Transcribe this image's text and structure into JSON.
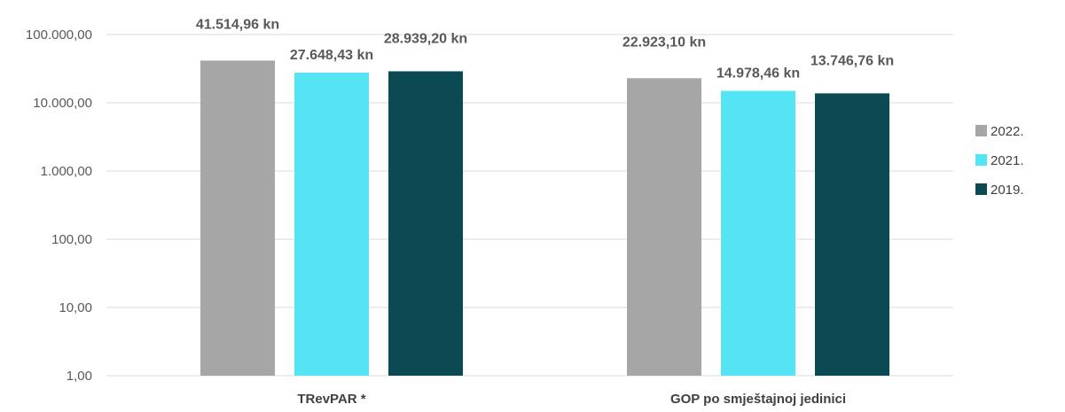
{
  "chart_data": {
    "type": "bar",
    "y_scale": "log",
    "ylim": [
      1,
      100000
    ],
    "y_ticks": [
      "1,00",
      "10,00",
      "100,00",
      "1.000,00",
      "10.000,00",
      "100.000,00"
    ],
    "categories": [
      "TRevPAR *",
      "GOP po smještajnoj jedinici"
    ],
    "series": [
      {
        "name": "2022.",
        "color": "#a6a6a6",
        "values": [
          41514.96,
          22923.1
        ],
        "labels": [
          "41.514,96 kn",
          "22.923,10 kn"
        ]
      },
      {
        "name": "2021.",
        "color": "#55e4f4",
        "values": [
          27648.43,
          14978.46
        ],
        "labels": [
          "27.648,43 kn",
          "14.978,46 kn"
        ]
      },
      {
        "name": "2019.",
        "color": "#0b4a52",
        "values": [
          28939.2,
          13746.76
        ],
        "labels": [
          "28.939,20 kn",
          "13.746,76 kn"
        ]
      }
    ],
    "grid": true,
    "legend_position": "right"
  }
}
